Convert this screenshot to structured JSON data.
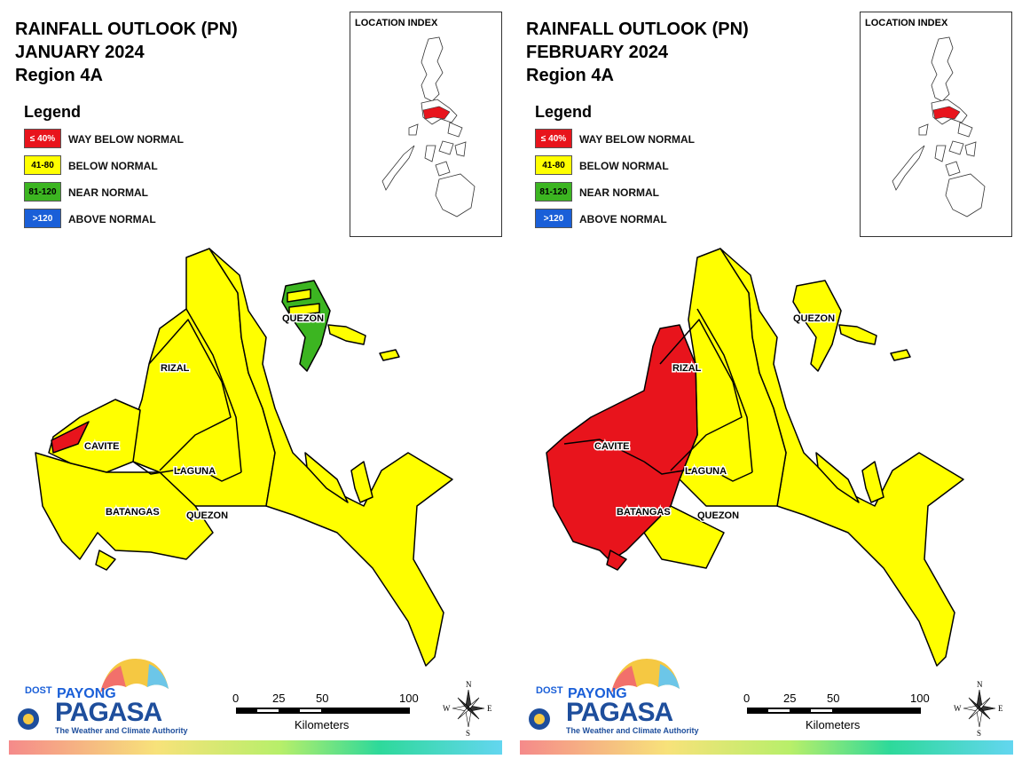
{
  "panels": [
    {
      "title_line1": "RAINFALL OUTLOOK (PN)",
      "title_line2": "JANUARY 2024",
      "title_line3": "Region 4A",
      "provinces": [
        "QUEZON",
        "RIZAL",
        "CAVITE",
        "LAGUNA",
        "BATANGAS",
        "QUEZON"
      ]
    },
    {
      "title_line1": "RAINFALL OUTLOOK (PN)",
      "title_line2": "FEBRUARY 2024",
      "title_line3": "Region 4A",
      "provinces": [
        "QUEZON",
        "RIZAL",
        "CAVITE",
        "LAGUNA",
        "BATANGAS",
        "QUEZON"
      ]
    }
  ],
  "legend": {
    "title": "Legend",
    "items": [
      {
        "code": "≤ 40%",
        "label": "WAY BELOW NORMAL",
        "color": "#e8141c",
        "text_color": "#ffffff"
      },
      {
        "code": "41-80",
        "label": "BELOW NORMAL",
        "color": "#ffff00",
        "text_color": "#000000"
      },
      {
        "code": "81-120",
        "label": "NEAR NORMAL",
        "color": "#3cb521",
        "text_color": "#000000"
      },
      {
        "code": ">120",
        "label": "ABOVE NORMAL",
        "color": "#1a5fd8",
        "text_color": "#ffffff"
      }
    ]
  },
  "location_index": {
    "title": "LOCATION INDEX"
  },
  "scale": {
    "ticks": [
      "0",
      "25",
      "50",
      "100"
    ],
    "unit": "Kilometers"
  },
  "compass": {
    "n": "N",
    "s": "S",
    "e": "E",
    "w": "W"
  },
  "branding": {
    "dost": "DOST",
    "payong": "PAYONG",
    "pagasa": "PAGASA",
    "tagline": "The Weather and Climate Authority"
  },
  "colors": {
    "way_below": "#e8141c",
    "below": "#ffff00",
    "near": "#3cb521",
    "above": "#1a5fd8",
    "outline": "#000000"
  }
}
